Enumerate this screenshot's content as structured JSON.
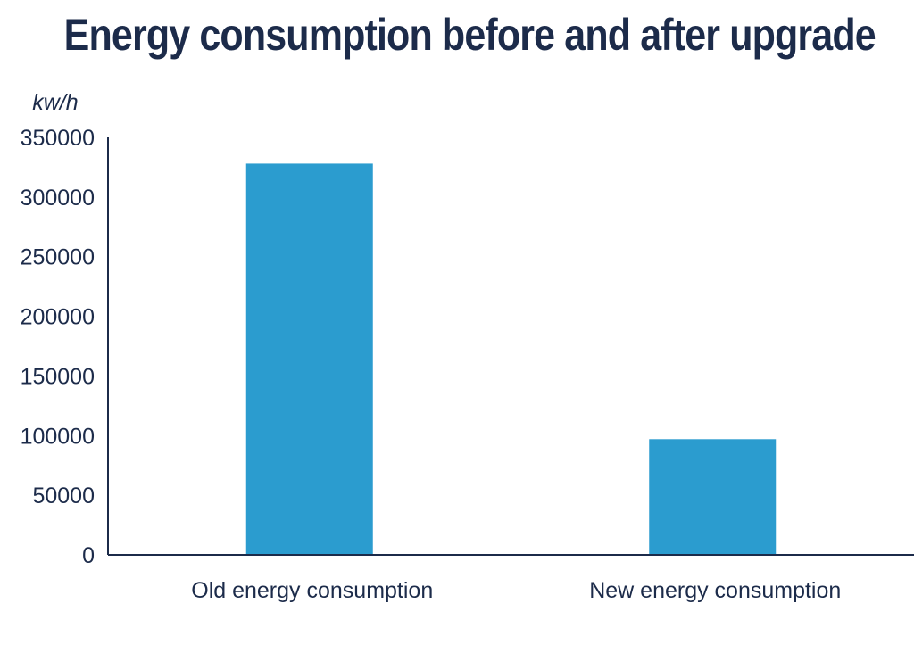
{
  "chart_data": {
    "type": "bar",
    "title": "Energy consumption before and after upgrade",
    "ylabel": "kw/h",
    "xlabel": "",
    "categories": [
      "Old energy consumption",
      "New energy consumption"
    ],
    "values": [
      328000,
      97000
    ],
    "ylim": [
      0,
      350000
    ],
    "yticks": [
      0,
      50000,
      100000,
      150000,
      200000,
      250000,
      300000,
      350000
    ],
    "ytick_labels": [
      "0",
      "50000",
      "100000",
      "150000",
      "200000",
      "250000",
      "300000",
      "350000"
    ],
    "bar_color": "#2b9ccf",
    "axis_color": "#1c2b4a",
    "grid": false,
    "legend": "none"
  }
}
